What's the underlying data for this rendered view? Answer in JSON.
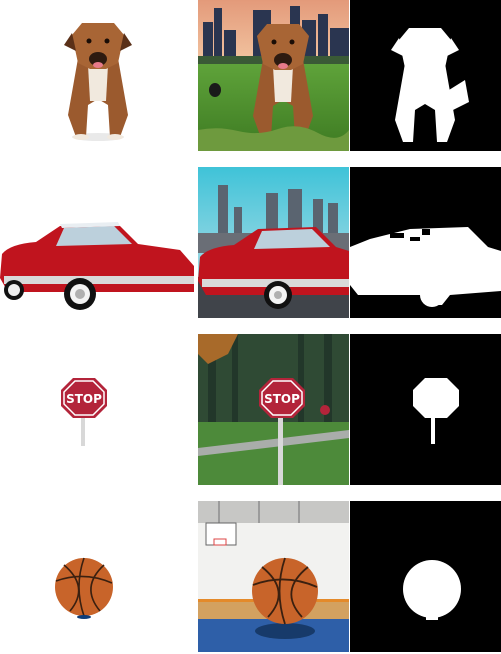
{
  "rows": [
    {
      "subject": "dog"
    },
    {
      "subject": "car"
    },
    {
      "subject": "stop-sign",
      "sign_text": "STOP"
    },
    {
      "subject": "basketball"
    }
  ],
  "columns": [
    "object-cutout",
    "composited-scene",
    "binary-mask"
  ],
  "colors": {
    "background": "#ffffff",
    "mask_bg": "#000000",
    "mask_fg": "#ffffff",
    "dog": "#9b5a2e",
    "car": "#c0141e",
    "stop_sign": "#b3243a",
    "basketball": "#c8642a"
  }
}
